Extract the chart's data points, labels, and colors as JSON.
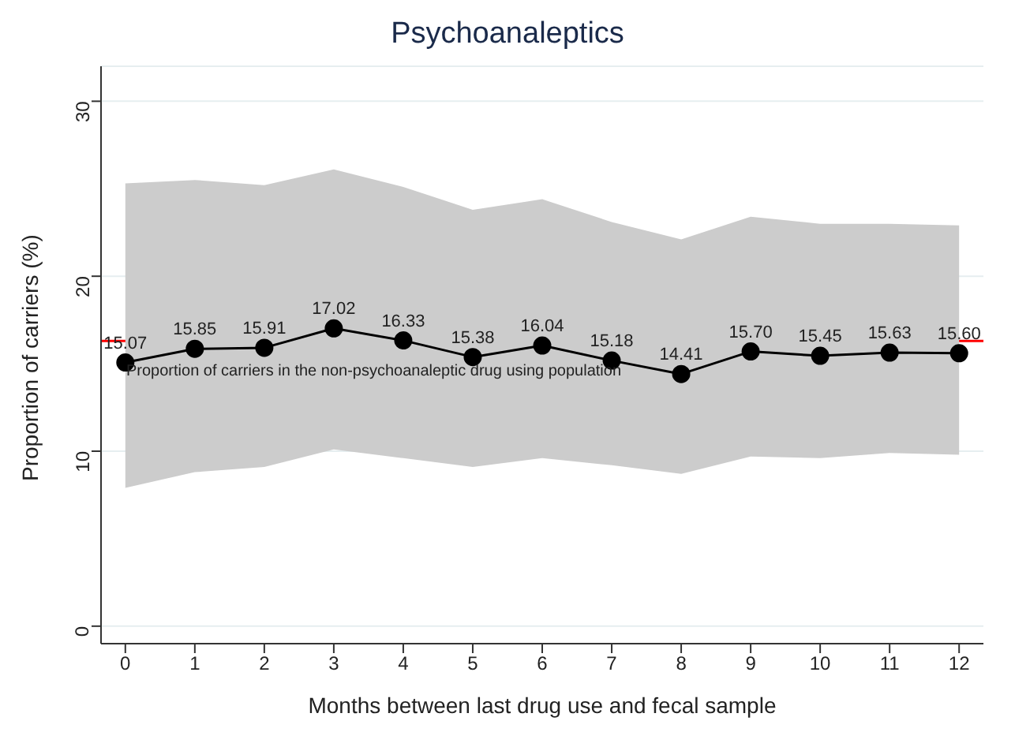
{
  "chart_data": {
    "type": "line",
    "title": "Psychoanaleptics",
    "xlabel": "Months between last drug use and fecal sample",
    "ylabel": "Proportion of carriers (%)",
    "x": [
      0,
      1,
      2,
      3,
      4,
      5,
      6,
      7,
      8,
      9,
      10,
      11,
      12
    ],
    "series": [
      {
        "color": "#000000",
        "values": [
          15.07,
          15.85,
          15.91,
          17.02,
          16.33,
          15.38,
          16.04,
          15.18,
          14.41,
          15.7,
          15.45,
          15.63,
          15.6
        ],
        "lower": [
          7.9,
          8.8,
          9.1,
          10.1,
          9.6,
          9.1,
          9.6,
          9.2,
          8.7,
          9.7,
          9.6,
          9.9,
          9.8
        ],
        "upper": [
          25.3,
          25.5,
          25.2,
          26.1,
          25.1,
          23.8,
          24.4,
          23.1,
          22.1,
          23.4,
          23.0,
          23.0,
          22.9
        ]
      }
    ],
    "value_labels": [
      "15.07",
      "15.85",
      "15.91",
      "17.02",
      "16.33",
      "15.38",
      "16.04",
      "15.18",
      "14.41",
      "15.70",
      "15.45",
      "15.63",
      "15.60"
    ],
    "marker": "circle",
    "line_style": "solid",
    "grid": "y",
    "xlim": [
      -0.35,
      12.35
    ],
    "xticks": [
      0,
      1,
      2,
      3,
      4,
      5,
      6,
      7,
      8,
      9,
      10,
      11,
      12
    ],
    "ylim": [
      -1,
      32
    ],
    "yticks": [
      0,
      10,
      20,
      30
    ],
    "ref_lines": [
      {
        "axis": "y",
        "value": 16.3,
        "label": "Proportion of carriers in the non-psychoanaleptic drug using population",
        "color": "#ff0000"
      }
    ]
  }
}
